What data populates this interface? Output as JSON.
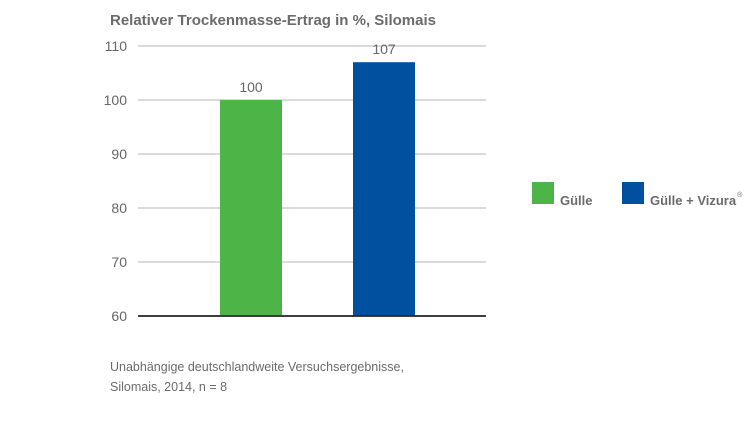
{
  "chart_data": {
    "type": "bar",
    "title": "Relativer Trockenmasse-Ertrag in %, Silomais",
    "categories": [
      "Gülle",
      "Gülle + Vizura"
    ],
    "values": [
      100,
      107
    ],
    "data_labels": [
      "100",
      "107"
    ],
    "colors": [
      "#4db548",
      "#0050a0"
    ],
    "ylim": [
      60,
      110
    ],
    "yticks": [
      60,
      70,
      80,
      90,
      100,
      110
    ],
    "grid": true,
    "legend": {
      "placement": "right",
      "entries": [
        {
          "label": "Gülle",
          "color": "#4db548",
          "superscript": ""
        },
        {
          "label": "Gülle + Vizura",
          "color": "#0050a0",
          "superscript": "®"
        }
      ]
    },
    "xlabel": "",
    "ylabel": ""
  },
  "footnote": {
    "line1": "Unabhängige deutschlandweite Versuchsergebnisse,",
    "line2": "Silomais, 2014, n = 8"
  }
}
